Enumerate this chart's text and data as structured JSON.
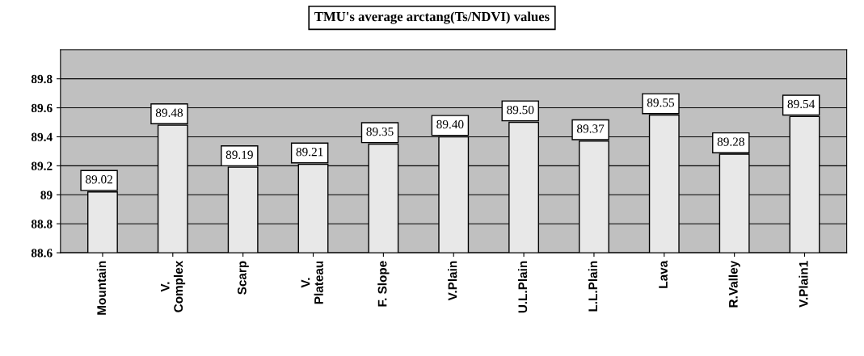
{
  "chart_data": {
    "type": "bar",
    "title": "TMU's average arctang(Ts/NDVI) values",
    "categories": [
      "Mountain",
      "V.\nComplex",
      "Scarp",
      "V.\nPlateau",
      "F. Slope",
      "V.Plain",
      "U.L.Plain",
      "L.L.Plain",
      "Lava",
      "R.Valley",
      "V.Plain1"
    ],
    "values": [
      89.02,
      89.48,
      89.19,
      89.21,
      89.35,
      89.4,
      89.5,
      89.37,
      89.55,
      89.28,
      89.54
    ],
    "value_labels": [
      "89.02",
      "89.48",
      "89.19",
      "89.21",
      "89.35",
      "89.40",
      "89.50",
      "89.37",
      "89.55",
      "89.28",
      "89.54"
    ],
    "color": "#e8e8e8",
    "ylim": [
      88.6,
      90.0
    ],
    "yticks": [
      88.6,
      88.8,
      89,
      89.2,
      89.4,
      89.6,
      89.8
    ],
    "grid": "y",
    "legend": false
  }
}
